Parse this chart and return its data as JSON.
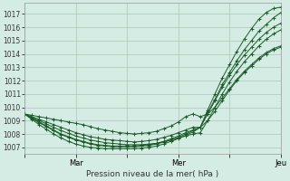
{
  "title": "",
  "xlabel": "Pression niveau de la mer( hPa )",
  "ylabel": "",
  "bg_color": "#d4ece4",
  "plot_bg_color": "#d4ece4",
  "grid_color": "#a8c8b8",
  "line_color": "#1a5c28",
  "ylim": [
    1006.5,
    1017.8
  ],
  "ytick_vals": [
    1007,
    1008,
    1009,
    1010,
    1011,
    1012,
    1013,
    1014,
    1015,
    1016,
    1017
  ],
  "xtick_positions": [
    0,
    24,
    48,
    72,
    96,
    120
  ],
  "xtick_labels": [
    "",
    "Mar",
    "",
    "Mer",
    "",
    "Jeu"
  ],
  "x_total": 120,
  "series": [
    [
      1009.5,
      1009.4,
      1009.3,
      1009.2,
      1009.1,
      1009.0,
      1008.9,
      1008.8,
      1008.7,
      1008.55,
      1008.4,
      1008.3,
      1008.2,
      1008.1,
      1008.05,
      1008.0,
      1008.05,
      1008.1,
      1008.2,
      1008.4,
      1008.6,
      1008.9,
      1009.3,
      1009.5,
      1009.3,
      1009.5,
      1010.0,
      1010.7,
      1011.4,
      1012.1,
      1012.7,
      1013.2,
      1013.7,
      1014.1,
      1014.4,
      1014.6
    ],
    [
      1009.5,
      1009.3,
      1009.1,
      1008.9,
      1008.7,
      1008.5,
      1008.3,
      1008.1,
      1007.95,
      1007.8,
      1007.7,
      1007.6,
      1007.55,
      1007.5,
      1007.45,
      1007.4,
      1007.45,
      1007.5,
      1007.6,
      1007.75,
      1007.9,
      1008.1,
      1008.3,
      1008.5,
      1008.5,
      1009.0,
      1009.7,
      1010.5,
      1011.3,
      1012.0,
      1012.6,
      1013.1,
      1013.6,
      1014.0,
      1014.3,
      1014.5
    ],
    [
      1009.5,
      1009.25,
      1009.0,
      1008.75,
      1008.5,
      1008.25,
      1008.05,
      1007.85,
      1007.7,
      1007.55,
      1007.45,
      1007.35,
      1007.3,
      1007.25,
      1007.2,
      1007.2,
      1007.2,
      1007.25,
      1007.3,
      1007.4,
      1007.55,
      1007.7,
      1007.85,
      1008.0,
      1008.1,
      1009.0,
      1010.0,
      1011.0,
      1011.9,
      1012.7,
      1013.4,
      1014.0,
      1014.6,
      1015.1,
      1015.5,
      1015.8
    ],
    [
      1009.5,
      1009.2,
      1008.9,
      1008.6,
      1008.3,
      1008.0,
      1007.8,
      1007.6,
      1007.45,
      1007.3,
      1007.2,
      1007.15,
      1007.1,
      1007.1,
      1007.1,
      1007.1,
      1007.15,
      1007.2,
      1007.3,
      1007.45,
      1007.65,
      1007.85,
      1008.1,
      1008.3,
      1008.5,
      1009.5,
      1010.5,
      1011.5,
      1012.4,
      1013.2,
      1013.9,
      1014.5,
      1015.1,
      1015.6,
      1016.0,
      1016.3
    ],
    [
      1009.5,
      1009.15,
      1008.85,
      1008.55,
      1008.25,
      1007.95,
      1007.75,
      1007.55,
      1007.4,
      1007.25,
      1007.15,
      1007.1,
      1007.05,
      1007.05,
      1007.05,
      1007.05,
      1007.1,
      1007.15,
      1007.25,
      1007.4,
      1007.55,
      1007.75,
      1008.0,
      1008.25,
      1008.5,
      1009.6,
      1010.6,
      1011.7,
      1012.6,
      1013.5,
      1014.3,
      1015.0,
      1015.7,
      1016.2,
      1016.7,
      1017.1
    ],
    [
      1009.5,
      1009.1,
      1008.7,
      1008.35,
      1008.0,
      1007.7,
      1007.45,
      1007.25,
      1007.1,
      1007.0,
      1006.95,
      1006.9,
      1006.9,
      1006.9,
      1006.9,
      1006.9,
      1006.95,
      1007.0,
      1007.1,
      1007.25,
      1007.45,
      1007.65,
      1007.9,
      1008.15,
      1008.5,
      1009.8,
      1011.0,
      1012.2,
      1013.2,
      1014.2,
      1015.1,
      1015.9,
      1016.6,
      1017.1,
      1017.4,
      1017.5
    ]
  ]
}
